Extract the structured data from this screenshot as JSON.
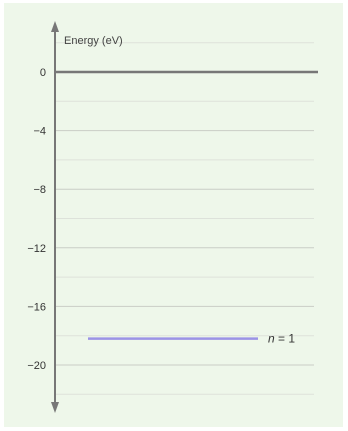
{
  "chart_data": {
    "type": "line",
    "ylabel": "Energy (eV)",
    "ylim": [
      -23,
      4
    ],
    "yticks": [
      0,
      -4,
      -8,
      -12,
      -16,
      -20
    ],
    "ytick_labels": [
      "0",
      "−4",
      "−8",
      "−12",
      "−16",
      "−20"
    ],
    "minor_gridlines": [
      2,
      -2,
      -6,
      -10,
      -14,
      -18,
      -22
    ],
    "zero_line": 0,
    "levels": [
      {
        "label_var": "n",
        "label_value": " = 1",
        "energy": -18.2,
        "color": "#9b93e6"
      }
    ],
    "grid": true
  }
}
